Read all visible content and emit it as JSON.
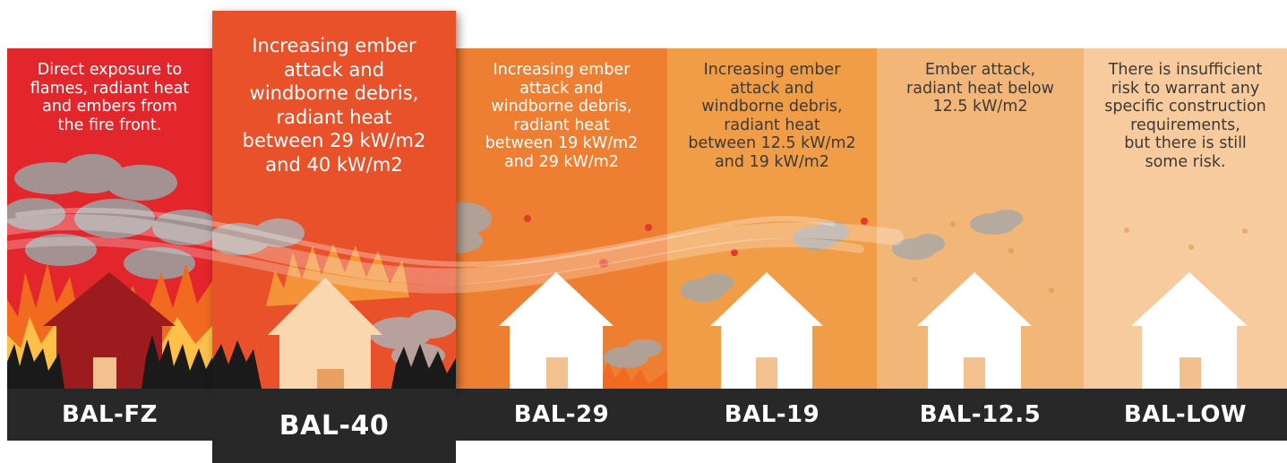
{
  "panels": [
    {
      "id": "fz",
      "bg": "#e3262c",
      "label": "BAL-FZ",
      "description": "Direct exposure to\nflames, radiant heat\nand embers from\nthe fire front."
    },
    {
      "id": "40",
      "bg": "#e8512a",
      "label": "BAL-40",
      "description": "Increasing ember\nattack and\nwindborne debris,\nradiant heat\nbetween 29 kW/m2\nand 40 kW/m2"
    },
    {
      "id": "29",
      "bg": "#ee7e31",
      "label": "BAL-29",
      "description": "Increasing ember\nattack and\nwindborne debris,\nradiant heat\nbetween 19 kW/m2\nand 29 kW/m2"
    },
    {
      "id": "19",
      "bg": "#f19d48",
      "label": "BAL-19",
      "description": "Increasing ember\nattack and\nwindborne debris,\nradiant heat\nbetween 12.5 kW/m2\nand 19 kW/m2"
    },
    {
      "id": "12-5",
      "bg": "#f3b679",
      "label": "BAL-12.5",
      "description": "Ember attack,\nradiant heat below\n12.5 kW/m2"
    },
    {
      "id": "low",
      "bg": "#f7cb9d",
      "label": "BAL-LOW",
      "description": "There is insufficient\nrisk to warrant any\nspecific construction\nrequirements,\nbut there is still\nsome risk."
    }
  ],
  "colors": {
    "label_bar": "#282828",
    "house_fz": "#9b1b1e",
    "house_40": "#fbd7b0",
    "house_default": "#ffffff",
    "door": "#f3c08f",
    "smoke": "#a7a7a7",
    "ember": "#e43a2a",
    "flame_outer": "#f26a1f",
    "flame_inner": "#ffc04a",
    "charred": "#1a1a1a"
  }
}
